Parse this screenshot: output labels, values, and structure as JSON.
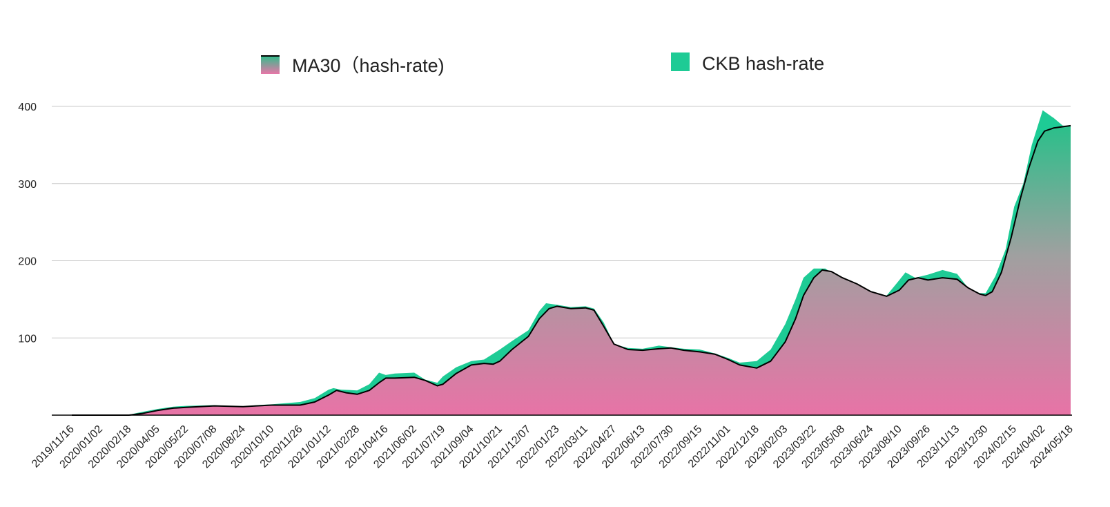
{
  "chart_data": {
    "type": "area",
    "legend": [
      {
        "label": "MA30（hash-rate)",
        "swatch": "gradient",
        "colors": [
          "#2bbf8a",
          "#e876a8"
        ]
      },
      {
        "label": "CKB hash-rate",
        "swatch": "solid",
        "color": "#1ecb95"
      }
    ],
    "legend_position": "top",
    "ylim": [
      0,
      400
    ],
    "y_ticks": [
      "100",
      "200",
      "300",
      "400"
    ],
    "y_tick_values": [
      100,
      200,
      300,
      400
    ],
    "grid": true,
    "x_range": [
      "2019/11/16",
      "2024/05/18"
    ],
    "x_ticks": [
      "2019/11/16",
      "2020/01/02",
      "2020/02/18",
      "2020/04/05",
      "2020/05/22",
      "2020/07/08",
      "2020/08/24",
      "2020/10/10",
      "2020/11/26",
      "2021/01/12",
      "2021/02/28",
      "2021/04/16",
      "2021/06/02",
      "2021/07/19",
      "2021/09/04",
      "2021/10/21",
      "2021/12/07",
      "2022/01/23",
      "2022/03/11",
      "2022/04/27",
      "2022/06/13",
      "2022/07/30",
      "2022/09/15",
      "2022/11/01",
      "2022/12/18",
      "2023/02/03",
      "2023/03/22",
      "2023/05/08",
      "2023/06/24",
      "2023/08/10",
      "2023/09/26",
      "2023/11/13",
      "2023/12/30",
      "2024/02/15",
      "2024/04/02",
      "2024/05/18"
    ],
    "series": [
      {
        "name": "CKB hash-rate",
        "color": "#1ecb95",
        "points": [
          [
            "2019/11/16",
            0
          ],
          [
            "2019/12/10",
            0
          ],
          [
            "2020/01/02",
            0
          ],
          [
            "2020/02/18",
            0.5
          ],
          [
            "2020/03/10",
            4
          ],
          [
            "2020/04/05",
            8
          ],
          [
            "2020/05/01",
            11
          ],
          [
            "2020/05/22",
            12
          ],
          [
            "2020/07/08",
            13
          ],
          [
            "2020/08/24",
            11
          ],
          [
            "2020/09/15",
            13
          ],
          [
            "2020/10/10",
            14
          ],
          [
            "2020/11/26",
            17
          ],
          [
            "2020/12/20",
            22
          ],
          [
            "2021/01/12",
            33
          ],
          [
            "2021/01/20",
            35
          ],
          [
            "2021/02/01",
            33
          ],
          [
            "2021/02/28",
            32
          ],
          [
            "2021/03/20",
            40
          ],
          [
            "2021/04/05",
            55
          ],
          [
            "2021/04/16",
            52
          ],
          [
            "2021/05/01",
            54
          ],
          [
            "2021/06/02",
            55
          ],
          [
            "2021/06/20",
            46
          ],
          [
            "2021/07/10",
            42
          ],
          [
            "2021/07/19",
            50
          ],
          [
            "2021/08/10",
            62
          ],
          [
            "2021/09/04",
            70
          ],
          [
            "2021/09/25",
            72
          ],
          [
            "2021/10/21",
            85
          ],
          [
            "2021/11/10",
            96
          ],
          [
            "2021/12/07",
            110
          ],
          [
            "2021/12/25",
            135
          ],
          [
            "2022/01/05",
            145
          ],
          [
            "2022/01/23",
            143
          ],
          [
            "2022/02/15",
            140
          ],
          [
            "2022/03/11",
            141
          ],
          [
            "2022/03/25",
            138
          ],
          [
            "2022/04/10",
            120
          ],
          [
            "2022/04/27",
            92
          ],
          [
            "2022/05/20",
            87
          ],
          [
            "2022/06/13",
            86
          ],
          [
            "2022/07/10",
            90
          ],
          [
            "2022/07/30",
            88
          ],
          [
            "2022/08/20",
            86
          ],
          [
            "2022/09/15",
            85
          ],
          [
            "2022/10/10",
            80
          ],
          [
            "2022/11/01",
            74
          ],
          [
            "2022/11/20",
            68
          ],
          [
            "2022/12/18",
            70
          ],
          [
            "2023/01/10",
            85
          ],
          [
            "2023/02/03",
            118
          ],
          [
            "2023/02/20",
            150
          ],
          [
            "2023/03/05",
            178
          ],
          [
            "2023/03/22",
            190
          ],
          [
            "2023/04/10",
            190
          ],
          [
            "2023/05/08",
            175
          ],
          [
            "2023/06/01",
            168
          ],
          [
            "2023/06/24",
            158
          ],
          [
            "2023/07/20",
            155
          ],
          [
            "2023/08/10",
            175
          ],
          [
            "2023/08/20",
            185
          ],
          [
            "2023/09/05",
            178
          ],
          [
            "2023/09/26",
            182
          ],
          [
            "2023/10/20",
            188
          ],
          [
            "2023/11/13",
            183
          ],
          [
            "2023/12/01",
            165
          ],
          [
            "2023/12/20",
            158
          ],
          [
            "2023/12/30",
            158
          ],
          [
            "2024/01/15",
            180
          ],
          [
            "2024/02/01",
            215
          ],
          [
            "2024/02/15",
            270
          ],
          [
            "2024/03/01",
            300
          ],
          [
            "2024/03/15",
            350
          ],
          [
            "2024/04/02",
            395
          ],
          [
            "2024/04/20",
            385
          ],
          [
            "2024/05/05",
            375
          ],
          [
            "2024/05/18",
            375
          ]
        ]
      },
      {
        "name": "MA30（hash-rate)",
        "color": "#000000",
        "points": [
          [
            "2019/11/16",
            0
          ],
          [
            "2020/01/02",
            0
          ],
          [
            "2020/02/18",
            0
          ],
          [
            "2020/03/10",
            2
          ],
          [
            "2020/04/05",
            6
          ],
          [
            "2020/05/01",
            9
          ],
          [
            "2020/05/22",
            10
          ],
          [
            "2020/07/08",
            12
          ],
          [
            "2020/08/24",
            11
          ],
          [
            "2020/09/15",
            12
          ],
          [
            "2020/10/10",
            13
          ],
          [
            "2020/11/26",
            13
          ],
          [
            "2020/12/20",
            17
          ],
          [
            "2021/01/12",
            26
          ],
          [
            "2021/01/25",
            32
          ],
          [
            "2021/02/10",
            29
          ],
          [
            "2021/02/28",
            27
          ],
          [
            "2021/03/20",
            32
          ],
          [
            "2021/04/05",
            42
          ],
          [
            "2021/04/16",
            48
          ],
          [
            "2021/05/01",
            48
          ],
          [
            "2021/06/02",
            49
          ],
          [
            "2021/06/20",
            45
          ],
          [
            "2021/07/10",
            38
          ],
          [
            "2021/07/19",
            40
          ],
          [
            "2021/08/10",
            54
          ],
          [
            "2021/09/04",
            65
          ],
          [
            "2021/09/25",
            67
          ],
          [
            "2021/10/10",
            66
          ],
          [
            "2021/10/21",
            70
          ],
          [
            "2021/11/10",
            85
          ],
          [
            "2021/12/07",
            102
          ],
          [
            "2021/12/25",
            125
          ],
          [
            "2022/01/10",
            138
          ],
          [
            "2022/01/23",
            141
          ],
          [
            "2022/02/15",
            138
          ],
          [
            "2022/03/11",
            139
          ],
          [
            "2022/03/25",
            136
          ],
          [
            "2022/04/10",
            115
          ],
          [
            "2022/04/27",
            92
          ],
          [
            "2022/05/20",
            85
          ],
          [
            "2022/06/13",
            84
          ],
          [
            "2022/07/10",
            86
          ],
          [
            "2022/07/30",
            87
          ],
          [
            "2022/08/20",
            84
          ],
          [
            "2022/09/15",
            82
          ],
          [
            "2022/10/10",
            79
          ],
          [
            "2022/11/01",
            72
          ],
          [
            "2022/11/20",
            65
          ],
          [
            "2022/12/18",
            61
          ],
          [
            "2023/01/10",
            70
          ],
          [
            "2023/02/03",
            95
          ],
          [
            "2023/02/20",
            125
          ],
          [
            "2023/03/05",
            155
          ],
          [
            "2023/03/22",
            178
          ],
          [
            "2023/04/05",
            188
          ],
          [
            "2023/04/20",
            186
          ],
          [
            "2023/05/08",
            178
          ],
          [
            "2023/06/01",
            170
          ],
          [
            "2023/06/24",
            160
          ],
          [
            "2023/07/20",
            154
          ],
          [
            "2023/08/10",
            162
          ],
          [
            "2023/08/25",
            175
          ],
          [
            "2023/09/10",
            178
          ],
          [
            "2023/09/26",
            175
          ],
          [
            "2023/10/20",
            178
          ],
          [
            "2023/11/13",
            176
          ],
          [
            "2023/12/01",
            165
          ],
          [
            "2023/12/20",
            157
          ],
          [
            "2023/12/30",
            155
          ],
          [
            "2024/01/10",
            160
          ],
          [
            "2024/01/25",
            185
          ],
          [
            "2024/02/10",
            230
          ],
          [
            "2024/02/25",
            280
          ],
          [
            "2024/03/10",
            320
          ],
          [
            "2024/03/25",
            355
          ],
          [
            "2024/04/05",
            368
          ],
          [
            "2024/04/20",
            372
          ],
          [
            "2024/05/18",
            375
          ]
        ]
      }
    ]
  }
}
